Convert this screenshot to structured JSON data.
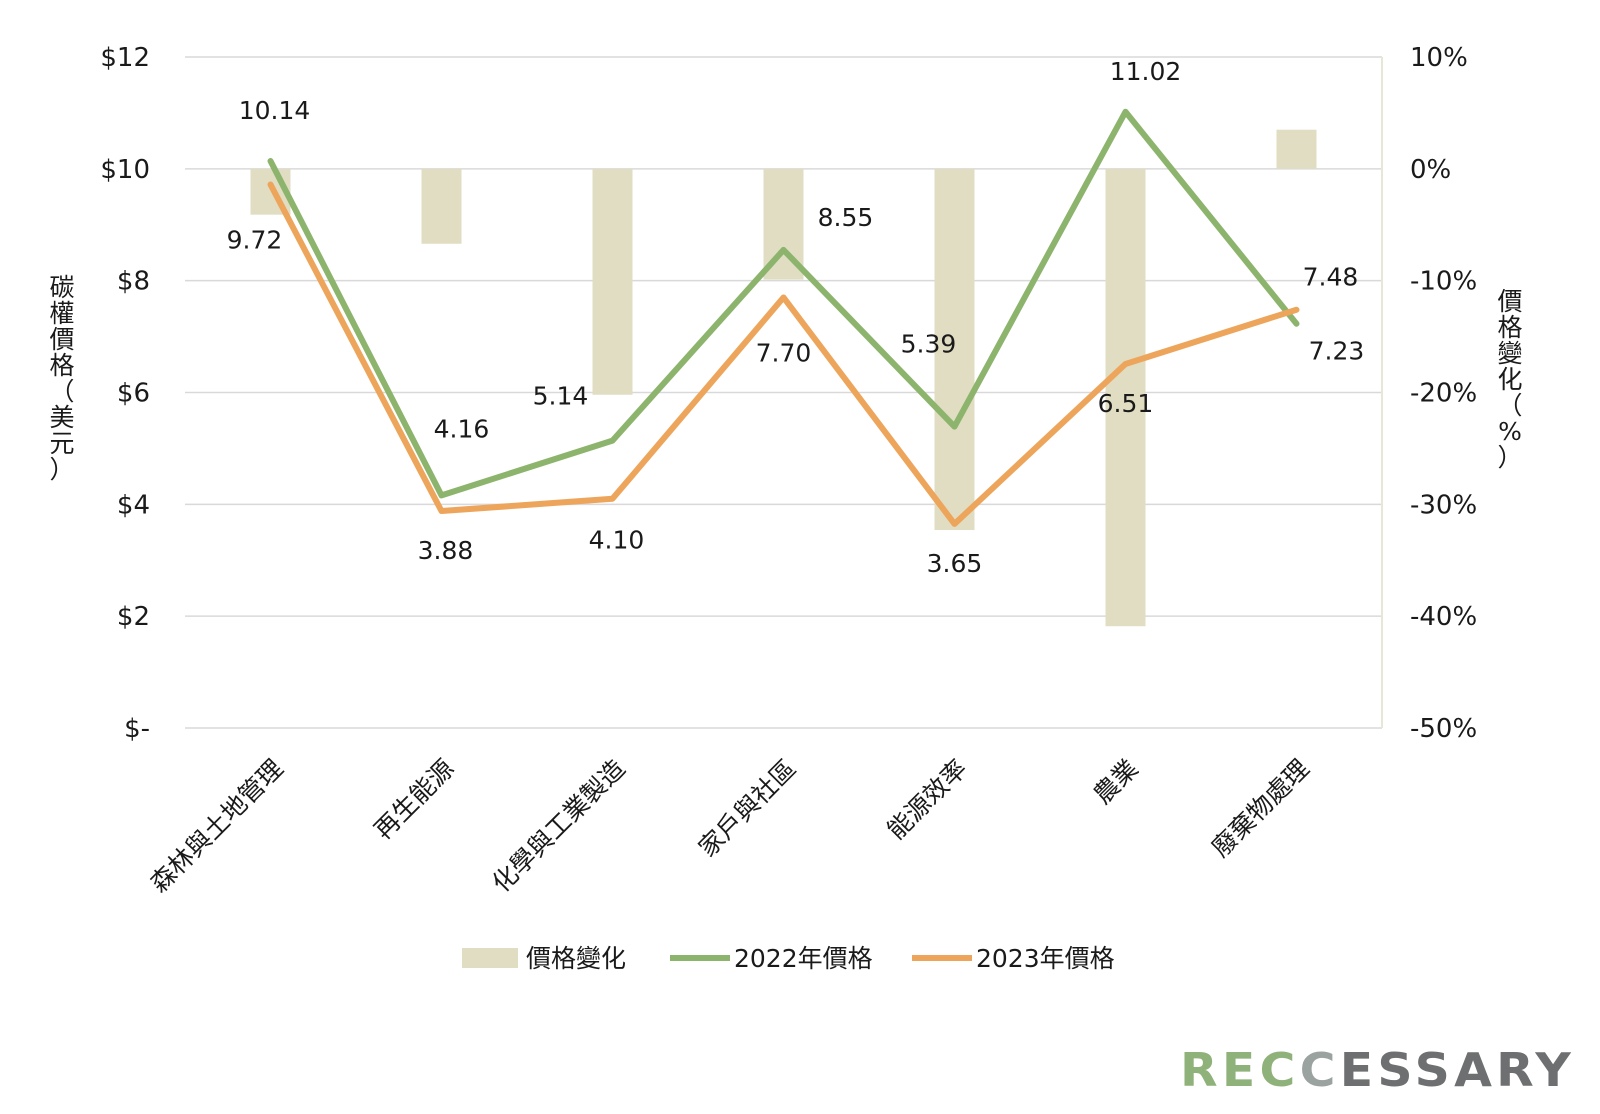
{
  "chart_data": {
    "type": "bar+line",
    "categories": [
      "森林與土地管理",
      "再生能源",
      "化學與工業製造",
      "家戶與社區",
      "能源效率",
      "農業",
      "廢棄物處理"
    ],
    "left_axis": {
      "title": "碳權價格（美元）",
      "range": [
        0,
        12
      ],
      "ticks": [
        0,
        2,
        4,
        6,
        8,
        10,
        12
      ],
      "tick_labels": [
        "$-",
        "$2",
        "$4",
        "$6",
        "$8",
        "$10",
        "$12"
      ]
    },
    "right_axis": {
      "title": "價格變化（%）",
      "range": [
        -50,
        10
      ],
      "ticks": [
        -50,
        -40,
        -30,
        -20,
        -10,
        0,
        10
      ],
      "tick_labels": [
        "-50%",
        "-40%",
        "-30%",
        "-20%",
        "-10%",
        "0%",
        "10%"
      ]
    },
    "series": [
      {
        "name": "價格變化",
        "type": "bar",
        "axis": "right",
        "color": "#e0ddc3",
        "values": [
          -4.1,
          -6.7,
          -20.2,
          -9.9,
          -32.3,
          -40.9,
          3.5
        ]
      },
      {
        "name": "2022年價格",
        "type": "line",
        "axis": "left",
        "color": "#8db46d",
        "values": [
          10.14,
          4.16,
          5.14,
          8.55,
          5.39,
          11.02,
          7.23
        ],
        "labels": [
          "10.14",
          "4.16",
          "5.14",
          "8.55",
          "5.39",
          "11.02",
          "7.23"
        ]
      },
      {
        "name": "2023年價格",
        "type": "line",
        "axis": "left",
        "color": "#eda55b",
        "values": [
          9.72,
          3.88,
          4.1,
          7.7,
          3.65,
          6.51,
          7.48
        ],
        "labels": [
          "9.72",
          "3.88",
          "4.10",
          "7.70",
          "3.65",
          "6.51",
          "7.48"
        ]
      }
    ],
    "grid": true,
    "legend": "bottom"
  },
  "logo": {
    "text": "RECCESSARY"
  }
}
